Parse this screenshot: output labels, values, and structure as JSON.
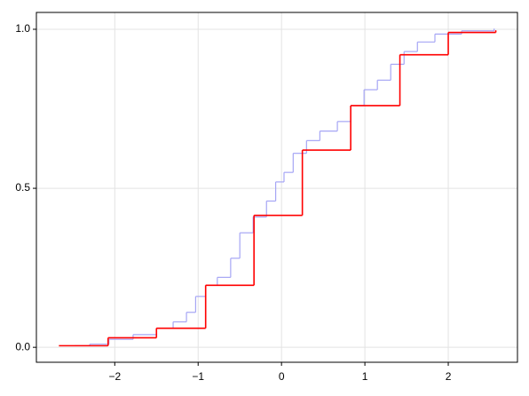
{
  "chart_data": {
    "type": "step",
    "xlim": [
      -2.94,
      2.83
    ],
    "ylim": [
      -0.047,
      1.053
    ],
    "xticks": [
      {
        "value": -2,
        "label": "−2"
      },
      {
        "value": -1,
        "label": "−1"
      },
      0,
      1,
      2
    ],
    "yticks": [
      {
        "value": 0,
        "label": "0.0"
      },
      0.5,
      {
        "value": 1,
        "label": "1.0"
      }
    ],
    "grid": true,
    "series": [
      {
        "color": "#a6a6f5",
        "x": [
          -2.48,
          -2.3,
          -2.07,
          -1.78,
          -1.5,
          -1.3,
          -1.14,
          -1.03,
          -0.91,
          -0.77,
          -0.61,
          -0.5,
          -0.34,
          -0.18,
          -0.07,
          0.03,
          0.14,
          0.3,
          0.46,
          0.67,
          0.83,
          0.99,
          1.15,
          1.31,
          1.47,
          1.63,
          1.84,
          2.16,
          2.55
        ],
        "values": [
          0.005,
          0.01,
          0.025,
          0.04,
          0.06,
          0.08,
          0.11,
          0.16,
          0.195,
          0.22,
          0.28,
          0.36,
          0.41,
          0.46,
          0.52,
          0.55,
          0.61,
          0.65,
          0.68,
          0.71,
          0.76,
          0.81,
          0.84,
          0.89,
          0.93,
          0.96,
          0.985,
          0.995,
          1.0
        ]
      },
      {
        "color": "#ff0000",
        "x": [
          -2.67,
          -2.08,
          -1.5,
          -0.91,
          -0.33,
          0.25,
          0.83,
          1.42,
          2.0,
          2.57
        ],
        "values": [
          0.005,
          0.03,
          0.06,
          0.195,
          0.415,
          0.62,
          0.76,
          0.92,
          0.99,
          0.995
        ]
      }
    ]
  }
}
